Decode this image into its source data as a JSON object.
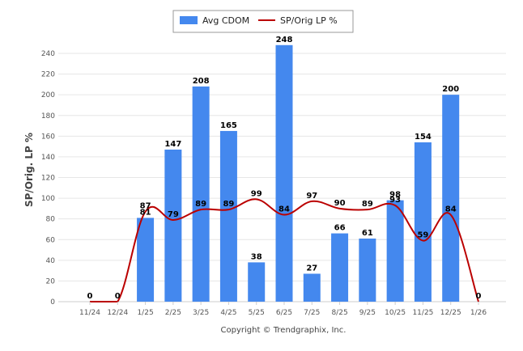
{
  "chart_data": {
    "type": "bar",
    "categories": [
      "11/24",
      "12/24",
      "1/25",
      "2/25",
      "3/25",
      "4/25",
      "5/25",
      "6/25",
      "7/25",
      "8/25",
      "9/25",
      "10/25",
      "11/25",
      "12/25",
      "1/26"
    ],
    "series": [
      {
        "name": "Avg CDOM",
        "kind": "bar",
        "color": "#4488ee",
        "values": [
          0,
          0,
          81,
          147,
          208,
          165,
          38,
          248,
          27,
          66,
          61,
          98,
          154,
          200,
          0
        ]
      },
      {
        "name": "SP/Orig LP %",
        "kind": "line",
        "color": "#bb0000",
        "values": [
          0,
          0,
          87,
          79,
          89,
          89,
          99,
          84,
          97,
          90,
          89,
          93,
          59,
          84,
          0
        ]
      }
    ],
    "title": "",
    "xlabel": "",
    "ylabel": "SP/Orig. LP %",
    "ylim": [
      0,
      250
    ],
    "yticks": [
      0,
      20,
      40,
      60,
      80,
      100,
      120,
      140,
      160,
      180,
      200,
      220,
      240
    ],
    "grid": true,
    "legend": "top-center",
    "footer": "Copyright © Trendgraphix, Inc."
  }
}
